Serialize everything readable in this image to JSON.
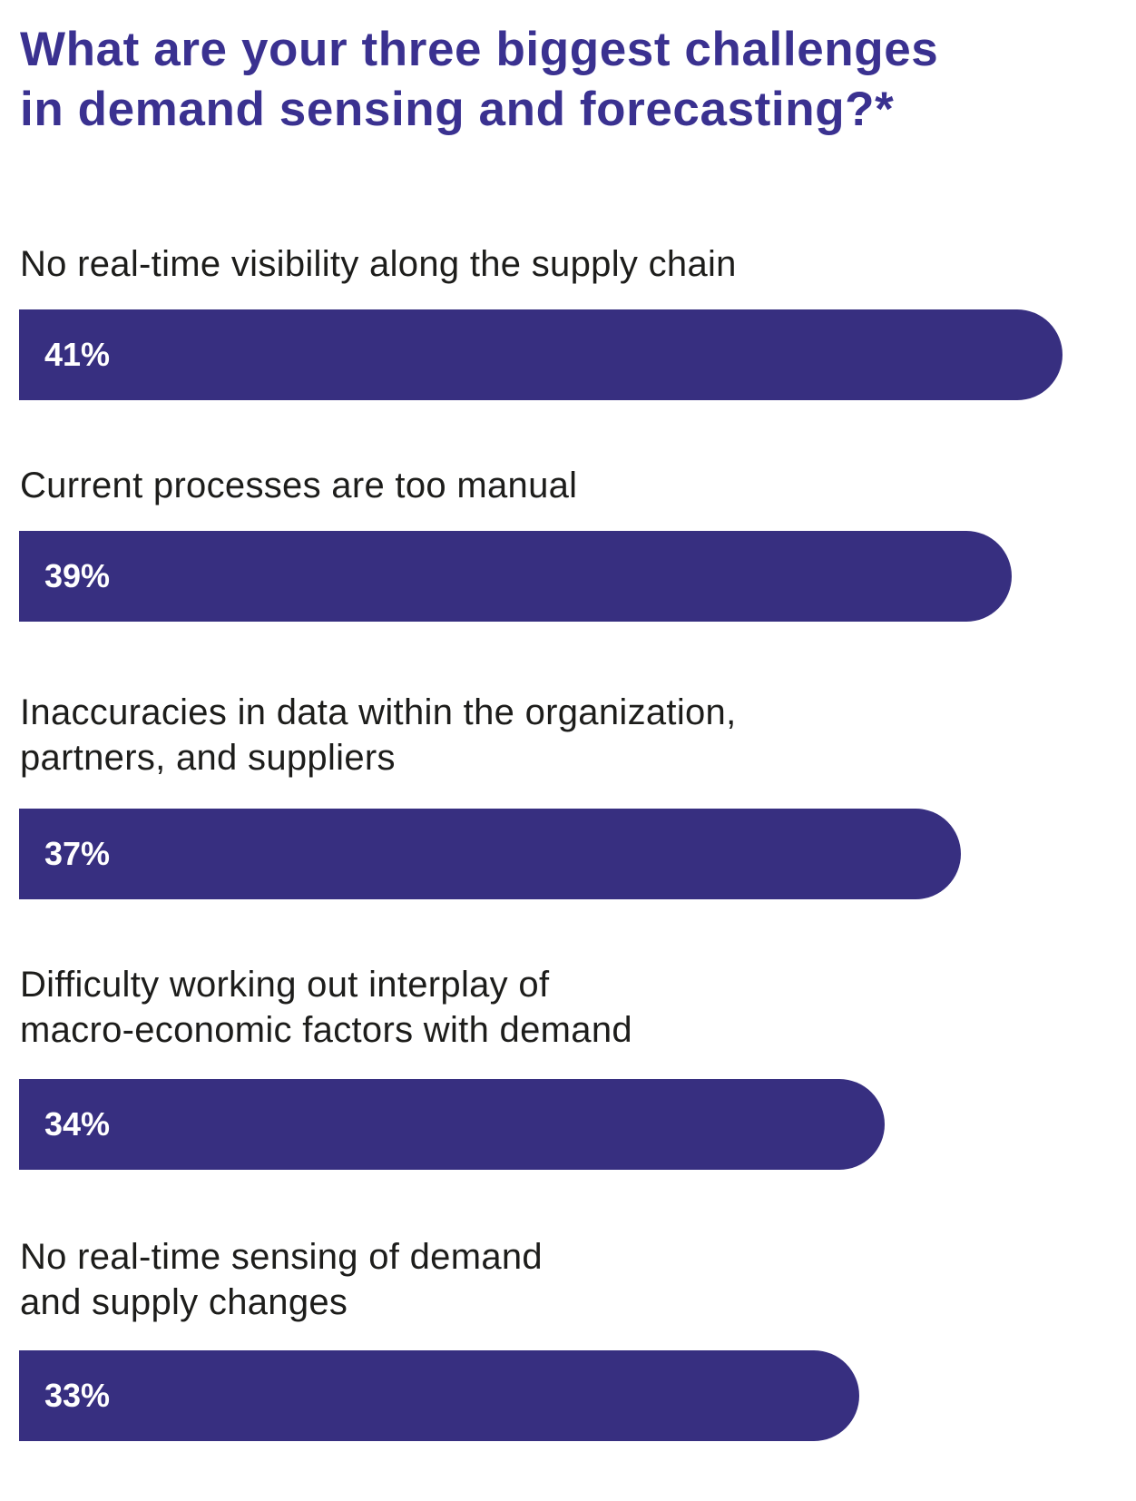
{
  "chart_data": {
    "type": "bar",
    "orientation": "horizontal",
    "title": [
      "What are your three biggest challenges",
      "in demand sensing and forecasting?*"
    ],
    "categories": [
      [
        "No real-time visibility along the supply chain"
      ],
      [
        "Current processes are too manual"
      ],
      [
        "Inaccuracies in data within the organization,",
        "partners, and suppliers"
      ],
      [
        "Difficulty working out interplay of",
        "macro-economic factors with demand"
      ],
      [
        "No real-time sensing of demand",
        "and supply changes"
      ]
    ],
    "values": [
      41,
      39,
      37,
      34,
      33
    ],
    "value_labels": [
      "41%",
      "39%",
      "37%",
      "34%",
      "33%"
    ],
    "unit": "%",
    "xlim": [
      0,
      41
    ],
    "grid": false,
    "bar_color": "#372f80",
    "title_color": "#3a3190"
  }
}
